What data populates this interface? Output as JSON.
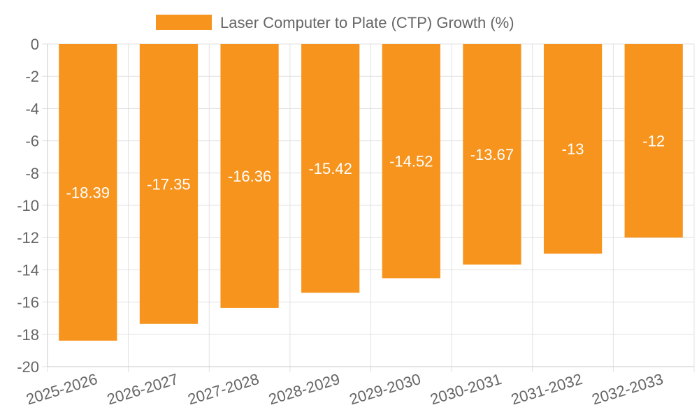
{
  "chart_data": {
    "type": "bar",
    "title": "",
    "xlabel": "",
    "ylabel": "",
    "categories": [
      "2025-2026",
      "2026-2027",
      "2027-2028",
      "2028-2029",
      "2029-2030",
      "2030-2031",
      "2031-2032",
      "2032-2033"
    ],
    "series": [
      {
        "name": "Laser Computer to Plate (CTP) Growth (%)",
        "values": [
          -18.39,
          -17.35,
          -16.36,
          -15.42,
          -14.52,
          -13.67,
          -13,
          -12
        ],
        "data_labels": [
          "-18.39",
          "-17.35",
          "-16.36",
          "-15.42",
          "-14.52",
          "-13.67",
          "-13",
          "-12"
        ],
        "color": "#f7941d"
      }
    ],
    "ylim": [
      -20,
      0
    ],
    "y_ticks": [
      0,
      -2,
      -4,
      -6,
      -8,
      -10,
      -12,
      -14,
      -16,
      -18,
      -20
    ],
    "y_tick_labels": [
      "0",
      "-2",
      "-4",
      "-6",
      "-8",
      "-10",
      "-12",
      "-14",
      "-16",
      "-18",
      "-20"
    ],
    "grid": true,
    "legend_position": "top-center",
    "x_tick_rotation": "angled"
  }
}
